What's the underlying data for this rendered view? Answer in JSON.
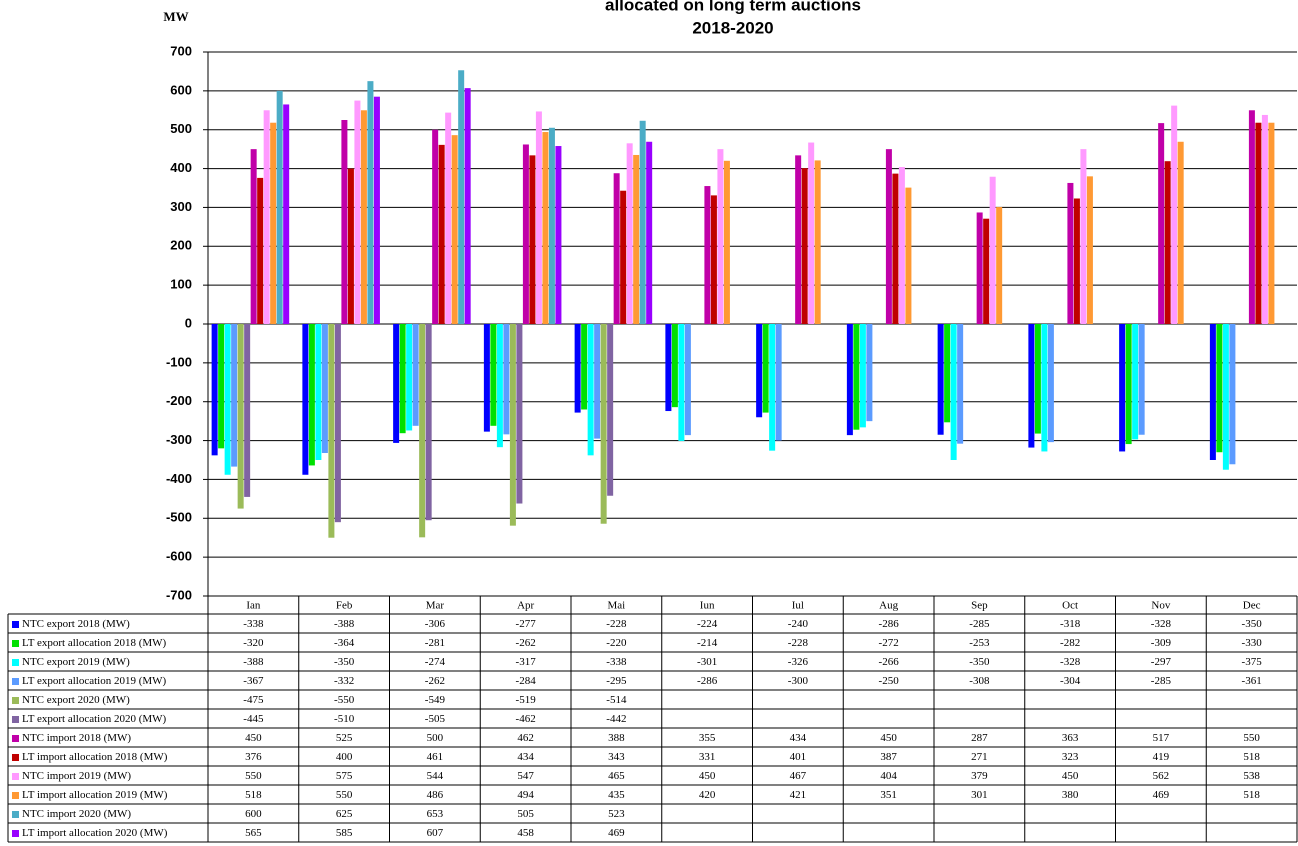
{
  "chart_data": {
    "type": "bar",
    "title": "allocated on long term auctions",
    "subtitle": "2018-2020",
    "y_label": "MW",
    "categories": [
      "Ian",
      "Feb",
      "Mar",
      "Apr",
      "Mai",
      "Iun",
      "Iul",
      "Aug",
      "Sep",
      "Oct",
      "Nov",
      "Dec"
    ],
    "series": [
      {
        "name": "NTC export 2018 (MW)",
        "color": "#0000ff",
        "values": [
          -338,
          -388,
          -306,
          -277,
          -228,
          -224,
          -240,
          -286,
          -285,
          -318,
          -328,
          -350
        ]
      },
      {
        "name": "LT export allocation 2018 (MW)",
        "color": "#00e000",
        "values": [
          -320,
          -364,
          -281,
          -262,
          -220,
          -214,
          -228,
          -272,
          -253,
          -282,
          -309,
          -330
        ]
      },
      {
        "name": "NTC export 2019 (MW)",
        "color": "#00ffff",
        "values": [
          -388,
          -350,
          -274,
          -317,
          -338,
          -301,
          -326,
          -266,
          -350,
          -328,
          -297,
          -375
        ]
      },
      {
        "name": "LT export allocation 2019 (MW)",
        "color": "#5b9bff",
        "values": [
          -367,
          -332,
          -262,
          -284,
          -295,
          -286,
          -300,
          -250,
          -308,
          -304,
          -285,
          -361
        ]
      },
      {
        "name": "NTC export 2020 (MW)",
        "color": "#9bbb59",
        "values": [
          -475,
          -550,
          -549,
          -519,
          -514,
          null,
          null,
          null,
          null,
          null,
          null,
          null
        ]
      },
      {
        "name": "LT export allocation 2020 (MW)",
        "color": "#8064a2",
        "values": [
          -445,
          -510,
          -505,
          -462,
          -442,
          null,
          null,
          null,
          null,
          null,
          null,
          null
        ]
      },
      {
        "name": "NTC import 2018 (MW)",
        "color": "#c000a8",
        "values": [
          450,
          525,
          500,
          462,
          388,
          355,
          434,
          450,
          287,
          363,
          517,
          550
        ]
      },
      {
        "name": "LT import allocation 2018 (MW)",
        "color": "#c00000",
        "values": [
          376,
          400,
          461,
          434,
          343,
          331,
          401,
          387,
          271,
          323,
          419,
          518
        ]
      },
      {
        "name": "NTC import 2019 (MW)",
        "color": "#ff99ff",
        "values": [
          550,
          575,
          544,
          547,
          465,
          450,
          467,
          404,
          379,
          450,
          562,
          538
        ]
      },
      {
        "name": "LT import allocation 2019 (MW)",
        "color": "#ff9933",
        "values": [
          518,
          550,
          486,
          494,
          435,
          420,
          421,
          351,
          301,
          380,
          469,
          518
        ]
      },
      {
        "name": "NTC import 2020 (MW)",
        "color": "#4bacc6",
        "values": [
          600,
          625,
          653,
          505,
          523,
          null,
          null,
          null,
          null,
          null,
          null,
          null
        ]
      },
      {
        "name": "LT import allocation 2020 (MW)",
        "color": "#9900ff",
        "values": [
          565,
          585,
          607,
          458,
          469,
          null,
          null,
          null,
          null,
          null,
          null,
          null
        ]
      }
    ],
    "ylim": [
      -700,
      700
    ],
    "yticks": [
      -700,
      -600,
      -500,
      -400,
      -300,
      -200,
      -100,
      0,
      100,
      200,
      300,
      400,
      500,
      600,
      700
    ],
    "grid": true
  }
}
